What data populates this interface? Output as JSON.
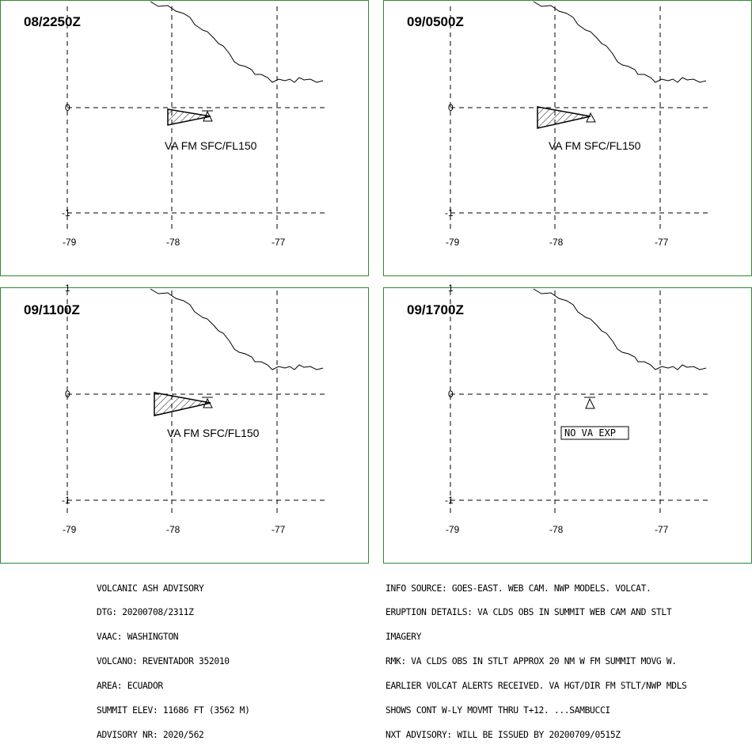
{
  "panels": [
    {
      "id": "p1",
      "title": "08/2250Z",
      "label": "VA FM SFC/FL150",
      "ash_cloud": true,
      "no_va_label": ""
    },
    {
      "id": "p2",
      "title": "09/0500Z",
      "label": "VA FM SFC/FL150",
      "ash_cloud": true,
      "no_va_label": ""
    },
    {
      "id": "p3",
      "title": "09/1100Z",
      "label": "VA FM SFC/FL150",
      "ash_cloud": true,
      "no_va_label": ""
    },
    {
      "id": "p4",
      "title": "09/1700Z",
      "label": "",
      "ash_cloud": false,
      "no_va_label": "NO VA EXP"
    }
  ],
  "axes": {
    "lon_ticks": [
      "-79",
      "-78",
      "-77"
    ],
    "lat_ticks": [
      "1",
      "0",
      "-1"
    ],
    "line_color": "#000000",
    "frame_color": "#2e8b2e"
  },
  "advisory_left": [
    "VOLCANIC ASH ADVISORY",
    "DTG: 20200708/2311Z",
    "VAAC: WASHINGTON",
    "VOLCANO: REVENTADOR 352010",
    "AREA: ECUADOR",
    "SUMMIT ELEV: 11686 FT (3562 M)",
    "ADVISORY NR: 2020/562"
  ],
  "advisory_right": [
    "INFO SOURCE: GOES-EAST. WEB CAM. NWP MODELS. VOLCAT.",
    "ERUPTION DETAILS: VA CLDS OBS IN SUMMIT WEB CAM AND STLT",
    "IMAGERY",
    "RMK: VA CLDS OBS IN STLT APPROX 20 NM W FM SUMMIT MOVG W.",
    "EARLIER VOLCAT ALERTS RECEIVED. VA HGT/DIR FM STLT/NWP MDLS",
    "SHOWS CONT W-LY MOVMT THRU T+12. ...SAMBUCCI",
    "NXT ADVISORY: WILL BE ISSUED BY 20200709/0515Z"
  ],
  "icons": {
    "volcano": "volcano-triangle-icon",
    "ash_hatch": "hatched-ash-polygon"
  }
}
